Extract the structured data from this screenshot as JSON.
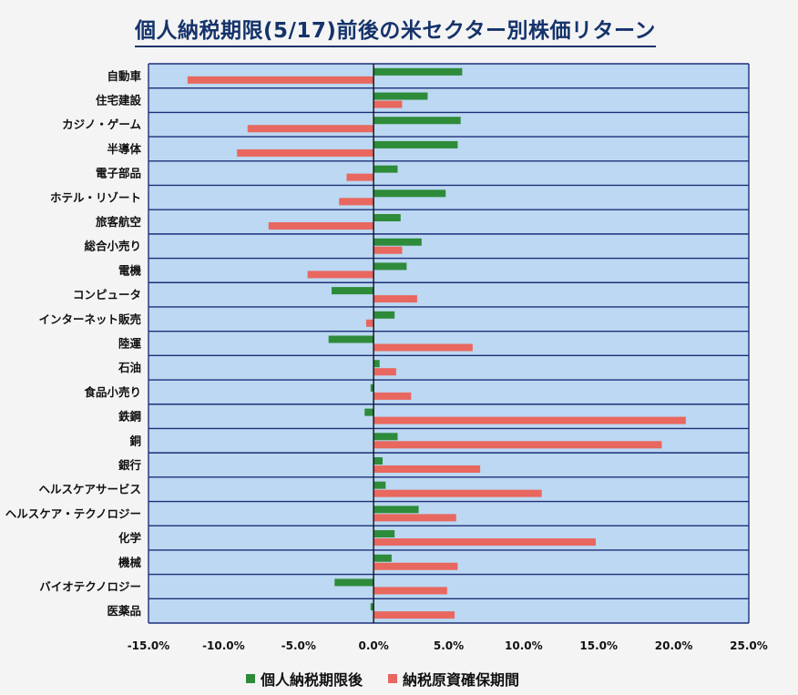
{
  "title": "個人納税期限(5/17)前後の米セクター別株価リターン",
  "chart_data": {
    "type": "bar",
    "orientation": "horizontal",
    "categories": [
      "自動車",
      "住宅建設",
      "カジノ・ゲーム",
      "半導体",
      "電子部品",
      "ホテル・リゾート",
      "旅客航空",
      "総合小売り",
      "電機",
      "コンピュータ",
      "インターネット販売",
      "陸運",
      "石油",
      "食品小売り",
      "鉄鋼",
      "銅",
      "銀行",
      "ヘルスケアサービス",
      "ヘルスケア・テクノロジー",
      "化学",
      "機械",
      "バイオテクノロジー",
      "医薬品"
    ],
    "series": [
      {
        "name": "個人納税期限後",
        "color": "#2e8b3a",
        "values": [
          5.9,
          3.6,
          5.8,
          5.6,
          1.6,
          4.8,
          1.8,
          3.2,
          2.2,
          -2.8,
          1.4,
          -3.0,
          0.4,
          -0.2,
          -0.6,
          1.6,
          0.6,
          0.8,
          3.0,
          1.4,
          1.2,
          -2.6,
          -0.2
        ]
      },
      {
        "name": "納税原資確保期間",
        "color": "#e8675f",
        "values": [
          -12.4,
          1.9,
          -8.4,
          -9.1,
          -1.8,
          -2.3,
          -7.0,
          1.9,
          -4.4,
          2.9,
          -0.5,
          6.6,
          1.5,
          2.5,
          20.8,
          19.2,
          7.1,
          11.2,
          5.5,
          14.8,
          5.6,
          4.9,
          5.4
        ]
      }
    ],
    "xlabel": "",
    "ylabel": "",
    "xlim": [
      -15,
      25
    ],
    "ticks": [
      "-15.0%",
      "-10.0%",
      "-5.0%",
      "0.0%",
      "5.0%",
      "10.0%",
      "15.0%",
      "20.0%",
      "25.0%"
    ],
    "tick_values": [
      -15,
      -10,
      -5,
      0,
      5,
      10,
      15,
      20,
      25
    ],
    "grid": true,
    "legend_position": "bottom",
    "plot_background": "#bcd8f2",
    "gridline_color": "#1d2f7a"
  }
}
